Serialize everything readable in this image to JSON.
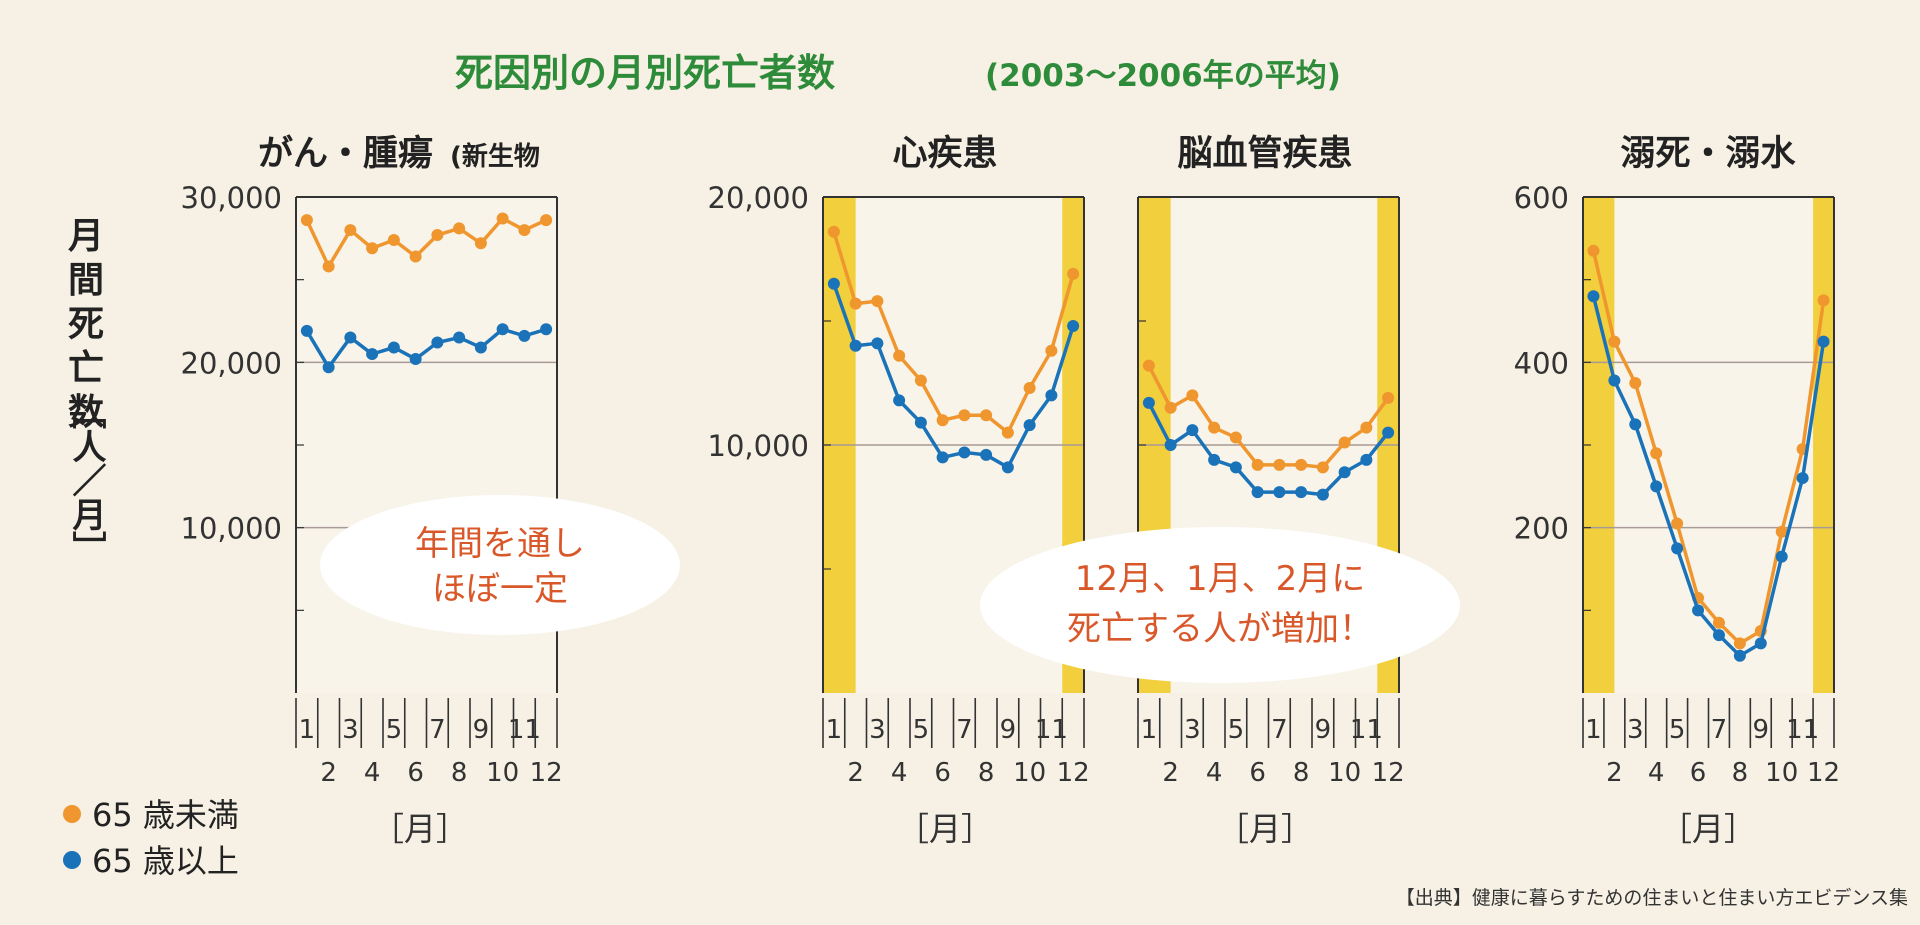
{
  "header": {
    "title": "死因別の月別死亡者数",
    "subtitle": "(2003～2006年の平均)"
  },
  "y_axis_label": [
    "月",
    "間",
    "死",
    "亡",
    "数",
    "［人／月］"
  ],
  "x_unit": "［月］",
  "legend": [
    {
      "label": "65 歳未満",
      "color": "#f0962e"
    },
    {
      "label": "65 歳以上",
      "color": "#1a72b8"
    }
  ],
  "annotations": {
    "note1": [
      "年間を通し",
      "ほぼ一定"
    ],
    "note2": [
      "12月、1月、2月に",
      "死亡する人が増加！"
    ]
  },
  "source": "【出典】健康に暮らすための住まいと住まい方エビデンス集",
  "colors": {
    "under65": "#f0962e",
    "over65": "#1a72b8",
    "highlight": "#f2cf3c",
    "gridline": "#a89a96"
  },
  "chart_data": [
    {
      "type": "line",
      "title": "がん・腫瘍",
      "title_small": "(新生物",
      "x": [
        1,
        2,
        3,
        4,
        5,
        6,
        7,
        8,
        9,
        10,
        11,
        12
      ],
      "ylim": [
        0,
        30000
      ],
      "yticks": [
        10000,
        20000,
        30000
      ],
      "ytick_labels": [
        "10,000",
        "20,000",
        "30,000"
      ],
      "highlight_winter": false,
      "series": [
        {
          "name": "65 歳未満",
          "values": [
            28600,
            25800,
            28000,
            26900,
            27400,
            26400,
            27700,
            28100,
            27200,
            28700,
            28000,
            28600
          ]
        },
        {
          "name": "65 歳以上",
          "values": [
            21900,
            19700,
            21500,
            20500,
            20900,
            20200,
            21200,
            21500,
            20900,
            22000,
            21600,
            22000
          ]
        }
      ]
    },
    {
      "type": "line",
      "title": "心疾患",
      "x": [
        1,
        2,
        3,
        4,
        5,
        6,
        7,
        8,
        9,
        10,
        11,
        12
      ],
      "ylim": [
        0,
        20000
      ],
      "yticks": [
        10000,
        20000
      ],
      "ytick_labels": [
        "10,000",
        "20,000"
      ],
      "highlight_winter": true,
      "series": [
        {
          "name": "65 歳未満",
          "values": [
            18600,
            15700,
            15800,
            13600,
            12600,
            11000,
            11200,
            11200,
            10500,
            12300,
            13800,
            16900
          ]
        },
        {
          "name": "65 歳以上",
          "values": [
            16500,
            14000,
            14100,
            11800,
            10900,
            9500,
            9700,
            9600,
            9100,
            10800,
            12000,
            14800
          ]
        }
      ]
    },
    {
      "type": "line",
      "title": "脳血管疾患",
      "x": [
        1,
        2,
        3,
        4,
        5,
        6,
        7,
        8,
        9,
        10,
        11,
        12
      ],
      "ylim": [
        0,
        20000
      ],
      "yticks": [
        10000,
        20000
      ],
      "ytick_labels": [
        "",
        ""
      ],
      "highlight_winter": true,
      "series": [
        {
          "name": "65 歳未満",
          "values": [
            13200,
            11500,
            12000,
            10700,
            10300,
            9200,
            9200,
            9200,
            9100,
            10100,
            10700,
            11900
          ]
        },
        {
          "name": "65 歳以上",
          "values": [
            11700,
            10000,
            10600,
            9400,
            9100,
            8100,
            8100,
            8100,
            8000,
            8900,
            9400,
            10500
          ]
        }
      ]
    },
    {
      "type": "line",
      "title": "溺死・溺水",
      "x": [
        1,
        2,
        3,
        4,
        5,
        6,
        7,
        8,
        9,
        10,
        11,
        12
      ],
      "ylim": [
        0,
        600
      ],
      "yticks": [
        200,
        400,
        600
      ],
      "ytick_labels": [
        "200",
        "400",
        "600"
      ],
      "highlight_winter": true,
      "series": [
        {
          "name": "65 歳未満",
          "values": [
            535,
            425,
            375,
            290,
            205,
            115,
            85,
            60,
            75,
            195,
            295,
            475
          ]
        },
        {
          "name": "65 歳以上",
          "values": [
            480,
            378,
            325,
            250,
            175,
            100,
            70,
            45,
            60,
            165,
            260,
            425
          ]
        }
      ]
    }
  ]
}
